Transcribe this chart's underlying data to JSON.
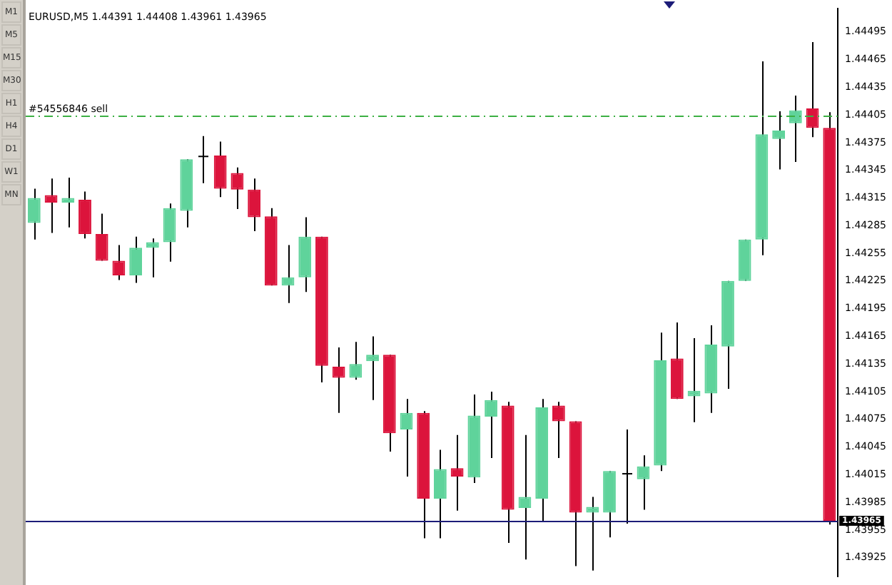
{
  "chart_data": {
    "type": "candlestick",
    "title": "EURUSD,M5 1.44391 1.44408 1.43961 1.43965",
    "categories": [
      null,
      null,
      null,
      null,
      null,
      null,
      null,
      null,
      null,
      null,
      null,
      null,
      null,
      null,
      null,
      null,
      null,
      null,
      null,
      null,
      null,
      null,
      null,
      null,
      null,
      null,
      null,
      null,
      null,
      null,
      null,
      null,
      null,
      null,
      null,
      null,
      null,
      null,
      null,
      null,
      null,
      null,
      null,
      null,
      null,
      null,
      null,
      null
    ],
    "ohlc": [
      [
        1.44288,
        1.44325,
        1.4427,
        1.44315
      ],
      [
        1.44318,
        1.44336,
        1.44277,
        1.4431
      ],
      [
        1.4431,
        1.44337,
        1.44283,
        1.44315
      ],
      [
        1.44313,
        1.44322,
        1.44271,
        1.44276
      ],
      [
        1.44276,
        1.44298,
        1.44247,
        1.44247
      ],
      [
        1.44247,
        1.44264,
        1.44226,
        1.44231
      ],
      [
        1.44231,
        1.44273,
        1.44223,
        1.44261
      ],
      [
        1.44261,
        1.44271,
        1.44229,
        1.44267
      ],
      [
        1.44267,
        1.44309,
        1.44246,
        1.44304
      ],
      [
        1.44301,
        1.44357,
        1.44283,
        1.44357
      ],
      [
        1.4436,
        1.44382,
        1.44331,
        1.4436
      ],
      [
        1.44361,
        1.44376,
        1.44316,
        1.44325
      ],
      [
        1.44342,
        1.44348,
        1.44303,
        1.44324
      ],
      [
        1.44324,
        1.44336,
        1.44279,
        1.44294
      ],
      [
        1.44295,
        1.44304,
        1.4422,
        1.4422
      ],
      [
        1.4422,
        1.44264,
        1.44201,
        1.44229
      ],
      [
        1.44229,
        1.44294,
        1.44213,
        1.44273
      ],
      [
        1.44273,
        1.44273,
        1.44115,
        1.44133
      ],
      [
        1.44132,
        1.44153,
        1.44082,
        1.4412
      ],
      [
        1.4412,
        1.44159,
        1.44118,
        1.44135
      ],
      [
        1.44138,
        1.44165,
        1.44096,
        1.44145
      ],
      [
        1.44145,
        1.44145,
        1.4404,
        1.4406
      ],
      [
        1.44064,
        1.44097,
        1.44013,
        1.44082
      ],
      [
        1.44082,
        1.44084,
        1.43946,
        1.43989
      ],
      [
        1.43989,
        1.44042,
        1.43946,
        1.44021
      ],
      [
        1.44022,
        1.44058,
        1.43976,
        1.44013
      ],
      [
        1.44012,
        1.44102,
        1.44006,
        1.44079
      ],
      [
        1.44078,
        1.44105,
        1.44033,
        1.44096
      ],
      [
        1.4409,
        1.44094,
        1.43941,
        1.43977
      ],
      [
        1.43979,
        1.44058,
        1.43923,
        1.43991
      ],
      [
        1.43989,
        1.44097,
        1.43965,
        1.44088
      ],
      [
        1.4409,
        1.44094,
        1.44033,
        1.44073
      ],
      [
        1.44073,
        1.44073,
        1.43916,
        1.43974
      ],
      [
        1.43974,
        1.43991,
        1.43911,
        1.4398
      ],
      [
        1.43974,
        1.44019,
        1.43947,
        1.44019
      ],
      [
        1.44016,
        1.44064,
        1.43962,
        1.44016
      ],
      [
        1.4401,
        1.44036,
        1.43977,
        1.44024
      ],
      [
        1.44025,
        1.44169,
        1.44019,
        1.44139
      ],
      [
        1.44141,
        1.4418,
        1.44097,
        1.44097
      ],
      [
        1.441,
        1.44163,
        1.44072,
        1.44106
      ],
      [
        1.44103,
        1.44177,
        1.44082,
        1.44156
      ],
      [
        1.44154,
        1.44225,
        1.44108,
        1.44225
      ],
      [
        1.44225,
        1.4427,
        1.44225,
        1.4427
      ],
      [
        1.4427,
        1.44463,
        1.44253,
        1.44384
      ],
      [
        1.44379,
        1.44409,
        1.44346,
        1.44388
      ],
      [
        1.44396,
        1.44426,
        1.44354,
        1.4441
      ],
      [
        1.44412,
        1.44484,
        1.44381,
        1.44391
      ],
      [
        1.44391,
        1.44408,
        1.43961,
        1.43965
      ]
    ],
    "colors": [
      "#5fd39b",
      "#dc143c",
      "#5fd39b",
      "#dc143c",
      "#dc143c",
      "#dc143c",
      "#5fd39b",
      "#5fd39b",
      "#5fd39b",
      "#5fd39b",
      "#000000",
      "#dc143c",
      "#dc143c",
      "#dc143c",
      "#dc143c",
      "#5fd39b",
      "#5fd39b",
      "#dc143c",
      "#dc143c",
      "#5fd39b",
      "#5fd39b",
      "#dc143c",
      "#5fd39b",
      "#dc143c",
      "#5fd39b",
      "#dc143c",
      "#5fd39b",
      "#5fd39b",
      "#dc143c",
      "#5fd39b",
      "#5fd39b",
      "#dc143c",
      "#dc143c",
      "#5fd39b",
      "#5fd39b",
      "#000000",
      "#5fd39b",
      "#5fd39b",
      "#dc143c",
      "#5fd39b",
      "#5fd39b",
      "#5fd39b",
      "#5fd39b",
      "#5fd39b",
      "#5fd39b",
      "#5fd39b",
      "#dc143c",
      "#dc143c"
    ],
    "ylim": [
      1.43905,
      1.4452
    ],
    "yticks": [
      1.43925,
      1.43955,
      1.43985,
      1.44015,
      1.44045,
      1.44075,
      1.44105,
      1.44135,
      1.44165,
      1.44195,
      1.44225,
      1.44255,
      1.44285,
      1.44315,
      1.44345,
      1.44375,
      1.44405,
      1.44435,
      1.44465,
      1.44495
    ],
    "ref_lines": [
      {
        "axis": "y",
        "value": 1.44405,
        "label": "#54556846 sell",
        "color": "#3cb043",
        "line_style": "dashed"
      },
      {
        "axis": "y",
        "value": 1.43965,
        "label": "1.43965",
        "color": "#1c1c78",
        "line_style": "solid"
      }
    ],
    "annotations": [
      "M1",
      "M5",
      "M15",
      "M30",
      "H1",
      "H4",
      "D1",
      "W1",
      "MN"
    ]
  }
}
